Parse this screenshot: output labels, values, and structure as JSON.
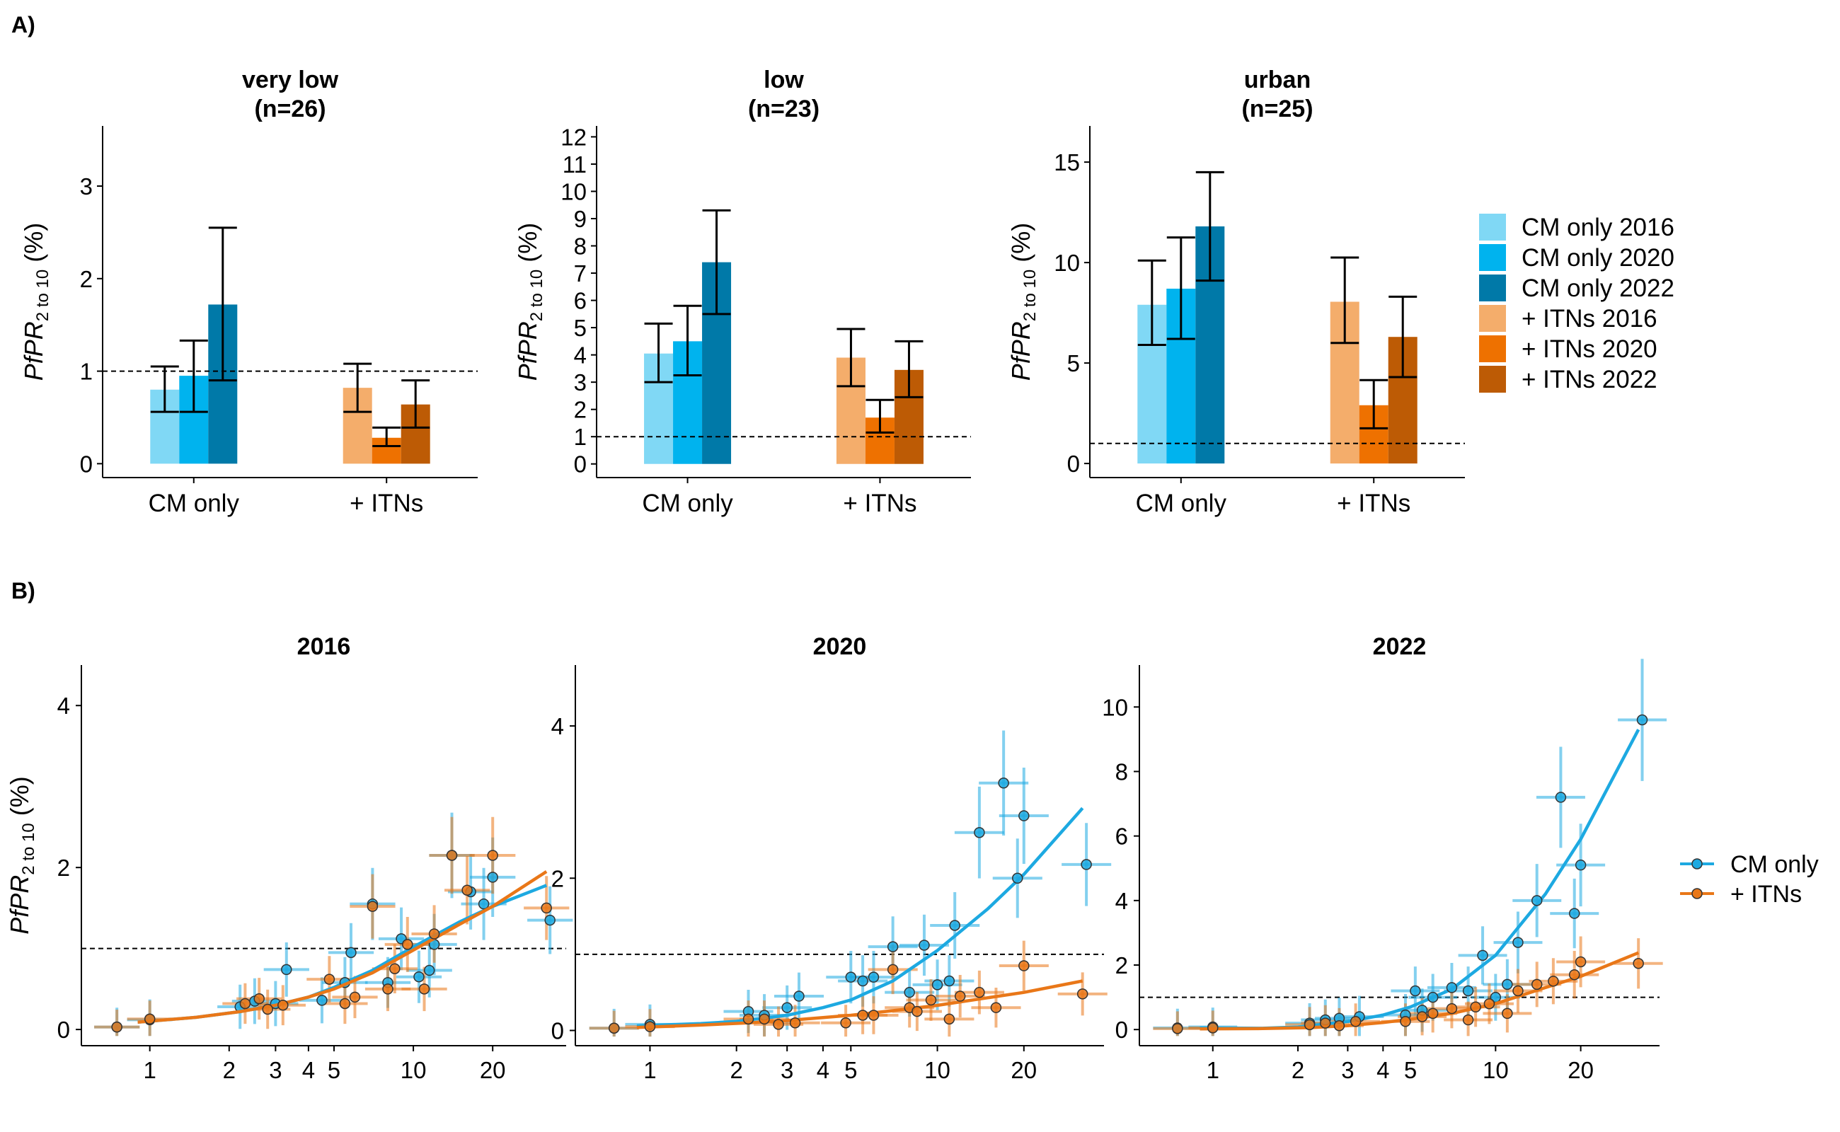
{
  "colors": {
    "cm_2016": "#80d8f5",
    "cm_2020": "#00b3ee",
    "cm_2022": "#0079a8",
    "itn_2016": "#f4ad6b",
    "itn_2020": "#ee7100",
    "itn_2022": "#bd5b05",
    "cm_line": "#1da9e1",
    "itn_line": "#e97718"
  },
  "panel_a_label": "A)",
  "panel_b_label": "B)",
  "y_label_main": "PfPR",
  "y_label_sub": "2 to 10",
  "y_label_unit": "(%)",
  "chart_data": [
    {
      "type": "bar",
      "panel": "A",
      "title_line1": "very low",
      "title_line2": "(n=26)",
      "categories": [
        "CM only",
        "+ ITNs"
      ],
      "series": [
        {
          "name": "2016",
          "values": [
            0.8,
            0.82
          ],
          "ci_low": [
            0.56,
            0.56
          ],
          "ci_high": [
            1.05,
            1.08
          ]
        },
        {
          "name": "2020",
          "values": [
            0.95,
            0.28
          ],
          "ci_low": [
            0.56,
            0.19
          ],
          "ci_high": [
            1.33,
            0.39
          ]
        },
        {
          "name": "2022",
          "values": [
            1.72,
            0.64
          ],
          "ci_low": [
            0.9,
            0.39
          ],
          "ci_high": [
            2.55,
            0.9
          ]
        }
      ],
      "ylim": [
        -0.15,
        3.65
      ],
      "yticks": [
        "0",
        "1",
        "2",
        "3"
      ],
      "reference_line": 1
    },
    {
      "type": "bar",
      "panel": "A",
      "title_line1": "low",
      "title_line2": "(n=23)",
      "categories": [
        "CM only",
        "+ ITNs"
      ],
      "series": [
        {
          "name": "2016",
          "values": [
            4.05,
            3.9
          ],
          "ci_low": [
            3.0,
            2.85
          ],
          "ci_high": [
            5.15,
            4.95
          ]
        },
        {
          "name": "2020",
          "values": [
            4.5,
            1.7
          ],
          "ci_low": [
            3.25,
            1.15
          ],
          "ci_high": [
            5.8,
            2.35
          ]
        },
        {
          "name": "2022",
          "values": [
            7.4,
            3.45
          ],
          "ci_low": [
            5.5,
            2.45
          ],
          "ci_high": [
            9.3,
            4.5
          ]
        }
      ],
      "ylim": [
        -0.5,
        12.4
      ],
      "yticks": [
        "0",
        "1",
        "2",
        "3",
        "4",
        "5",
        "6",
        "7",
        "8",
        "9",
        "10",
        "11",
        "12"
      ],
      "reference_line": 1
    },
    {
      "type": "bar",
      "panel": "A",
      "title_line1": "urban",
      "title_line2": "(n=25)",
      "categories": [
        "CM only",
        "+ ITNs"
      ],
      "series": [
        {
          "name": "2016",
          "values": [
            7.9,
            8.05
          ],
          "ci_low": [
            5.9,
            6.0
          ],
          "ci_high": [
            10.1,
            10.25
          ]
        },
        {
          "name": "2020",
          "values": [
            8.7,
            2.9
          ],
          "ci_low": [
            6.2,
            1.75
          ],
          "ci_high": [
            11.25,
            4.15
          ]
        },
        {
          "name": "2022",
          "values": [
            11.8,
            6.3
          ],
          "ci_low": [
            9.1,
            4.3
          ],
          "ci_high": [
            14.5,
            8.3
          ]
        }
      ],
      "ylim": [
        -0.7,
        16.8
      ],
      "yticks": [
        "0",
        "5",
        "10",
        "15"
      ],
      "reference_line": 1
    },
    {
      "type": "scatter",
      "panel": "B",
      "title": "2016",
      "x_scale": "log",
      "xlim": [
        0.55,
        38
      ],
      "xticks": [
        "1",
        "2",
        "3",
        "4",
        "5",
        "10",
        "20"
      ],
      "ylim": [
        -0.2,
        4.5
      ],
      "yticks": [
        "0",
        "2",
        "4"
      ],
      "reference_line": 1,
      "series": [
        {
          "name": "CM only",
          "points": [
            [
              0.75,
              0.03
            ],
            [
              1.0,
              0.12
            ],
            [
              2.2,
              0.28
            ],
            [
              2.5,
              0.35
            ],
            [
              3.0,
              0.32
            ],
            [
              3.3,
              0.74
            ],
            [
              4.5,
              0.36
            ],
            [
              5.5,
              0.58
            ],
            [
              5.8,
              0.95
            ],
            [
              7.0,
              1.55
            ],
            [
              8.0,
              0.58
            ],
            [
              9.0,
              1.12
            ],
            [
              10.5,
              0.65
            ],
            [
              11.5,
              0.73
            ],
            [
              12.0,
              1.05
            ],
            [
              14.0,
              2.15
            ],
            [
              16.5,
              1.7
            ],
            [
              18.5,
              1.55
            ],
            [
              20.0,
              1.88
            ],
            [
              33.0,
              1.35
            ]
          ],
          "fit": [
            [
              0.9,
              0.09
            ],
            [
              1.5,
              0.15
            ],
            [
              2.2,
              0.22
            ],
            [
              3.0,
              0.3
            ],
            [
              4.0,
              0.4
            ],
            [
              5.0,
              0.52
            ],
            [
              7.0,
              0.73
            ],
            [
              10.0,
              1.02
            ],
            [
              15.0,
              1.33
            ],
            [
              20.0,
              1.52
            ],
            [
              32.0,
              1.78
            ]
          ]
        },
        {
          "name": "+ ITNs",
          "points": [
            [
              0.75,
              0.03
            ],
            [
              1.0,
              0.13
            ],
            [
              2.3,
              0.32
            ],
            [
              2.6,
              0.38
            ],
            [
              2.8,
              0.25
            ],
            [
              3.2,
              0.3
            ],
            [
              4.8,
              0.62
            ],
            [
              5.5,
              0.32
            ],
            [
              6.0,
              0.4
            ],
            [
              7.0,
              1.52
            ],
            [
              8.0,
              0.5
            ],
            [
              8.5,
              0.75
            ],
            [
              9.5,
              1.05
            ],
            [
              11.0,
              0.5
            ],
            [
              12.0,
              1.18
            ],
            [
              14.0,
              2.15
            ],
            [
              16.0,
              1.72
            ],
            [
              20.0,
              2.15
            ],
            [
              32.0,
              1.5
            ]
          ],
          "fit": [
            [
              0.9,
              0.09
            ],
            [
              1.5,
              0.15
            ],
            [
              2.2,
              0.22
            ],
            [
              3.0,
              0.3
            ],
            [
              4.0,
              0.4
            ],
            [
              5.0,
              0.5
            ],
            [
              7.0,
              0.7
            ],
            [
              10.0,
              0.98
            ],
            [
              15.0,
              1.3
            ],
            [
              20.0,
              1.52
            ],
            [
              32.0,
              1.95
            ]
          ]
        }
      ]
    },
    {
      "type": "scatter",
      "panel": "B",
      "title": "2020",
      "x_scale": "log",
      "xlim": [
        0.55,
        38
      ],
      "xticks": [
        "1",
        "2",
        "3",
        "4",
        "5",
        "10",
        "20"
      ],
      "ylim": [
        -0.2,
        4.8
      ],
      "yticks": [
        "0",
        "2",
        "4"
      ],
      "reference_line": 1,
      "series": [
        {
          "name": "CM only",
          "points": [
            [
              0.75,
              0.03
            ],
            [
              1.0,
              0.08
            ],
            [
              2.2,
              0.25
            ],
            [
              2.5,
              0.2
            ],
            [
              3.0,
              0.3
            ],
            [
              3.3,
              0.45
            ],
            [
              5.0,
              0.7
            ],
            [
              5.5,
              0.65
            ],
            [
              6.0,
              0.7
            ],
            [
              7.0,
              1.1
            ],
            [
              8.0,
              0.5
            ],
            [
              9.0,
              1.12
            ],
            [
              10.0,
              0.6
            ],
            [
              11.0,
              0.65
            ],
            [
              11.5,
              1.38
            ],
            [
              14.0,
              2.6
            ],
            [
              17.0,
              3.25
            ],
            [
              19.0,
              2.0
            ],
            [
              20.0,
              2.82
            ],
            [
              33.0,
              2.18
            ]
          ],
          "fit": [
            [
              0.9,
              0.06
            ],
            [
              1.5,
              0.09
            ],
            [
              2.0,
              0.12
            ],
            [
              3.0,
              0.2
            ],
            [
              4.0,
              0.3
            ],
            [
              5.0,
              0.4
            ],
            [
              7.0,
              0.65
            ],
            [
              10.0,
              1.05
            ],
            [
              15.0,
              1.6
            ],
            [
              20.0,
              2.05
            ],
            [
              32.0,
              2.92
            ]
          ]
        },
        {
          "name": "+ ITNs",
          "points": [
            [
              0.75,
              0.03
            ],
            [
              1.0,
              0.05
            ],
            [
              2.2,
              0.15
            ],
            [
              2.5,
              0.15
            ],
            [
              2.8,
              0.08
            ],
            [
              3.2,
              0.1
            ],
            [
              4.8,
              0.1
            ],
            [
              5.5,
              0.2
            ],
            [
              6.0,
              0.2
            ],
            [
              7.0,
              0.8
            ],
            [
              8.0,
              0.3
            ],
            [
              8.5,
              0.25
            ],
            [
              9.5,
              0.4
            ],
            [
              11.0,
              0.15
            ],
            [
              12.0,
              0.45
            ],
            [
              14.0,
              0.5
            ],
            [
              16.0,
              0.3
            ],
            [
              20.0,
              0.85
            ],
            [
              32.0,
              0.48
            ]
          ],
          "fit": [
            [
              0.9,
              0.04
            ],
            [
              1.5,
              0.07
            ],
            [
              2.2,
              0.1
            ],
            [
              3.0,
              0.13
            ],
            [
              4.0,
              0.17
            ],
            [
              5.0,
              0.2
            ],
            [
              7.0,
              0.26
            ],
            [
              10.0,
              0.33
            ],
            [
              15.0,
              0.43
            ],
            [
              20.0,
              0.5
            ],
            [
              32.0,
              0.65
            ]
          ]
        }
      ]
    },
    {
      "type": "scatter",
      "panel": "B",
      "title": "2022",
      "x_scale": "log",
      "xlim": [
        0.55,
        38
      ],
      "xticks": [
        "1",
        "2",
        "3",
        "4",
        "5",
        "10",
        "20"
      ],
      "ylim": [
        -0.5,
        11.3
      ],
      "yticks": [
        "0",
        "2",
        "4",
        "6",
        "8",
        "10"
      ],
      "reference_line": 1,
      "series": [
        {
          "name": "CM only",
          "points": [
            [
              0.75,
              0.05
            ],
            [
              1.0,
              0.08
            ],
            [
              2.2,
              0.2
            ],
            [
              2.5,
              0.3
            ],
            [
              2.8,
              0.35
            ],
            [
              3.3,
              0.4
            ],
            [
              4.8,
              0.45
            ],
            [
              5.2,
              1.2
            ],
            [
              5.5,
              0.6
            ],
            [
              6.0,
              1.0
            ],
            [
              7.0,
              1.3
            ],
            [
              8.0,
              1.2
            ],
            [
              9.0,
              2.3
            ],
            [
              10.0,
              1.0
            ],
            [
              11.0,
              1.4
            ],
            [
              12.0,
              2.7
            ],
            [
              14.0,
              4.0
            ],
            [
              17.0,
              7.2
            ],
            [
              19.0,
              3.6
            ],
            [
              20.0,
              5.1
            ],
            [
              33.0,
              9.6
            ]
          ],
          "fit": [
            [
              0.9,
              0.05
            ],
            [
              1.5,
              0.04
            ],
            [
              2.0,
              0.08
            ],
            [
              3.0,
              0.25
            ],
            [
              4.0,
              0.45
            ],
            [
              5.0,
              0.7
            ],
            [
              7.0,
              1.25
            ],
            [
              10.0,
              2.3
            ],
            [
              15.0,
              4.2
            ],
            [
              20.0,
              5.9
            ],
            [
              32.0,
              9.3
            ]
          ]
        },
        {
          "name": "+ ITNs",
          "points": [
            [
              0.75,
              0.03
            ],
            [
              1.0,
              0.05
            ],
            [
              2.2,
              0.15
            ],
            [
              2.5,
              0.2
            ],
            [
              2.8,
              0.12
            ],
            [
              3.2,
              0.25
            ],
            [
              4.8,
              0.25
            ],
            [
              5.5,
              0.4
            ],
            [
              6.0,
              0.5
            ],
            [
              7.0,
              0.65
            ],
            [
              8.0,
              0.3
            ],
            [
              8.5,
              0.7
            ],
            [
              9.5,
              0.8
            ],
            [
              11.0,
              0.5
            ],
            [
              12.0,
              1.2
            ],
            [
              14.0,
              1.4
            ],
            [
              16.0,
              1.5
            ],
            [
              19.0,
              1.7
            ],
            [
              20.0,
              2.1
            ],
            [
              32.0,
              2.05
            ]
          ],
          "fit": [
            [
              0.9,
              0.02
            ],
            [
              1.5,
              0.03
            ],
            [
              2.2,
              0.06
            ],
            [
              3.0,
              0.12
            ],
            [
              4.0,
              0.22
            ],
            [
              5.0,
              0.32
            ],
            [
              7.0,
              0.5
            ],
            [
              10.0,
              0.8
            ],
            [
              15.0,
              1.3
            ],
            [
              20.0,
              1.65
            ],
            [
              32.0,
              2.38
            ]
          ]
        }
      ]
    }
  ],
  "legend_a": [
    "CM only 2016",
    "CM only 2020",
    "CM only 2022",
    "+ ITNs 2016",
    "+ ITNs 2020",
    "+ ITNs 2022"
  ],
  "legend_b": [
    "CM only",
    "+ ITNs"
  ]
}
